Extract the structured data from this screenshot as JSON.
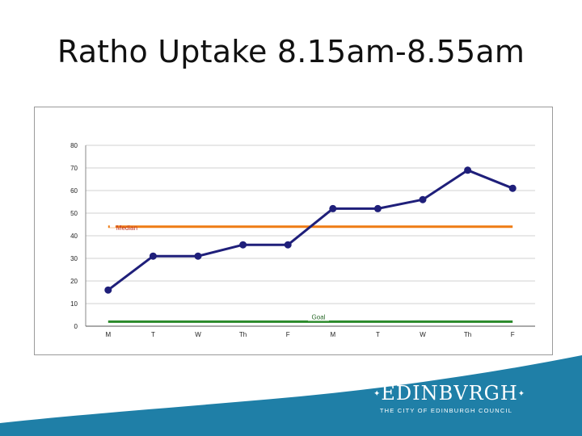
{
  "slide": {
    "title": "Ratho Uptake 8.15am-8.55am"
  },
  "chart_data": {
    "type": "line",
    "title": "",
    "xlabel": "",
    "ylabel": "",
    "categories": [
      "M",
      "T",
      "W",
      "Th",
      "F",
      "M",
      "T",
      "W",
      "Th",
      "F"
    ],
    "series": [
      {
        "values": [
          16,
          31,
          31,
          36,
          36,
          52,
          52,
          56,
          69,
          61
        ],
        "color": "#1f1f7a"
      }
    ],
    "reference_lines": [
      {
        "label": "Median",
        "value": 44,
        "color": "#ef7c14"
      },
      {
        "label": "Goal",
        "value": 2,
        "color": "#2a8a2a"
      }
    ],
    "ylim": [
      0,
      80
    ],
    "yticks": [
      0,
      10,
      20,
      30,
      40,
      50,
      60,
      70,
      80
    ],
    "grid": true
  },
  "footer": {
    "background_color": "#1f7fa7",
    "logo_text": "EDINBVRGH",
    "logo_ornament": "✦",
    "logo_subtext": "THE CITY OF EDINBURGH COUNCIL"
  }
}
